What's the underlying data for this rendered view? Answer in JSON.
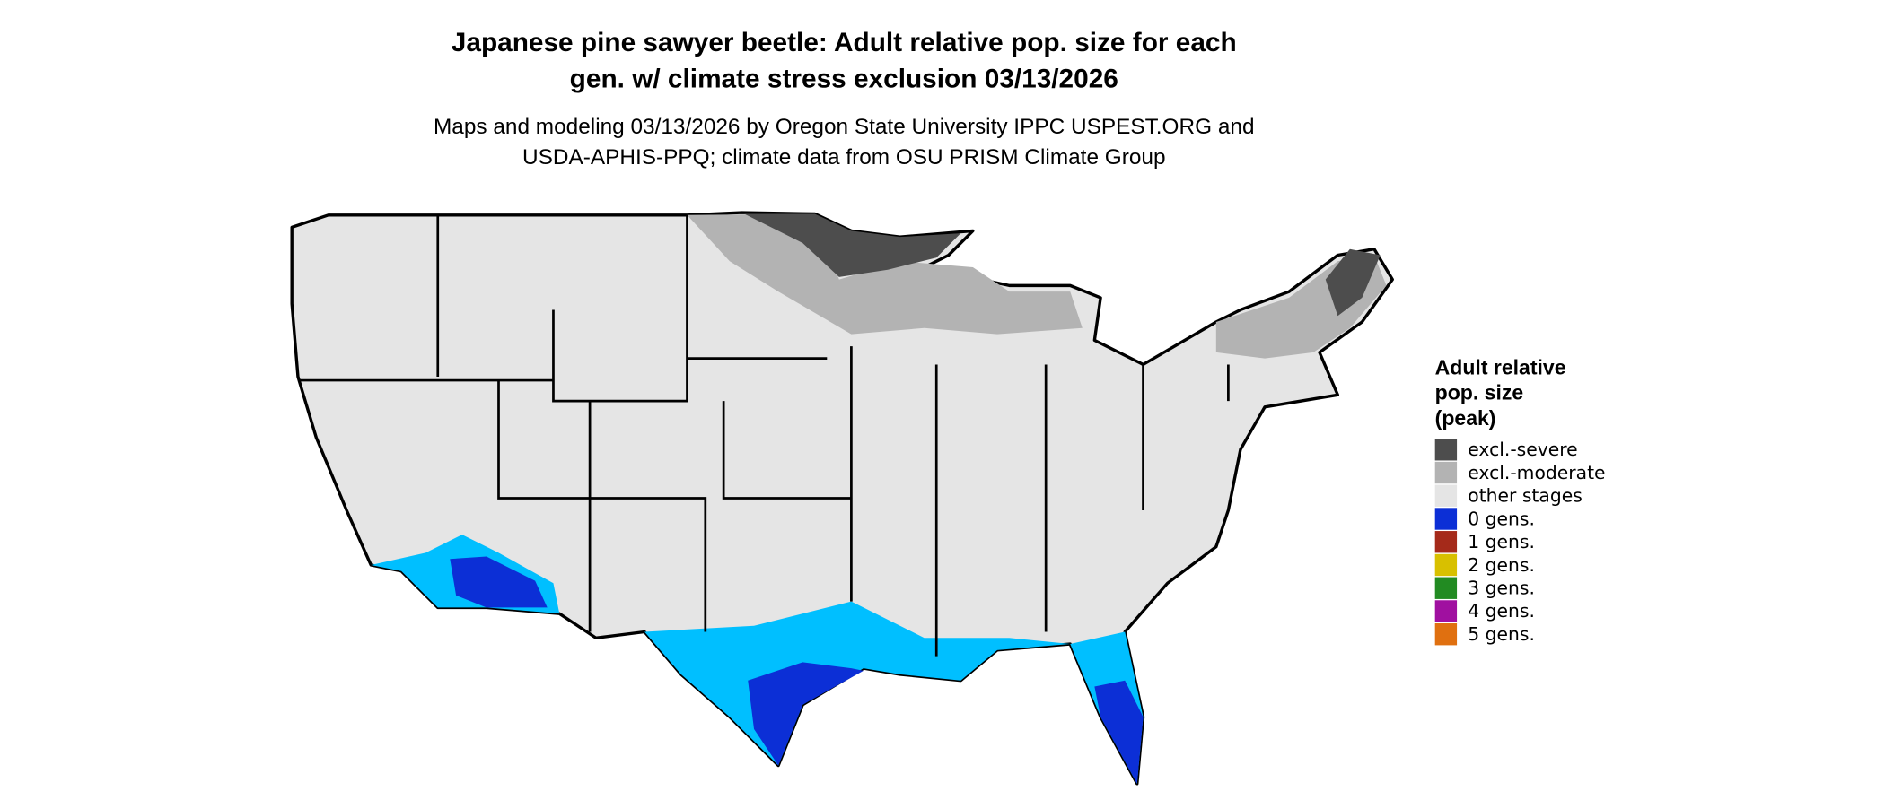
{
  "title": [
    "Japanese pine sawyer beetle: Adult relative pop. size for each",
    "gen. w/ climate stress exclusion 03/13/2026"
  ],
  "subtitle": [
    "Maps and modeling 03/13/2026 by Oregon State University IPPC USPEST.ORG and",
    "USDA-APHIS-PPQ; climate data from OSU PRISM Climate Group"
  ],
  "legend": {
    "title": [
      "Adult relative",
      "pop. size",
      "(peak)"
    ],
    "items": [
      {
        "label": "excl.-severe",
        "color": "#4d4d4d"
      },
      {
        "label": "excl.-moderate",
        "color": "#b3b3b3"
      },
      {
        "label": "other stages",
        "color": "#e5e5e5"
      },
      {
        "label": "0 gens.",
        "color": "#0c2fd6"
      },
      {
        "label": "1 gens.",
        "color": "#a52a1a"
      },
      {
        "label": "2 gens.",
        "color": "#d8c000"
      },
      {
        "label": "3 gens.",
        "color": "#228b22"
      },
      {
        "label": "4 gens.",
        "color": "#a010a0"
      },
      {
        "label": "5 gens.",
        "color": "#e07010"
      }
    ]
  }
}
